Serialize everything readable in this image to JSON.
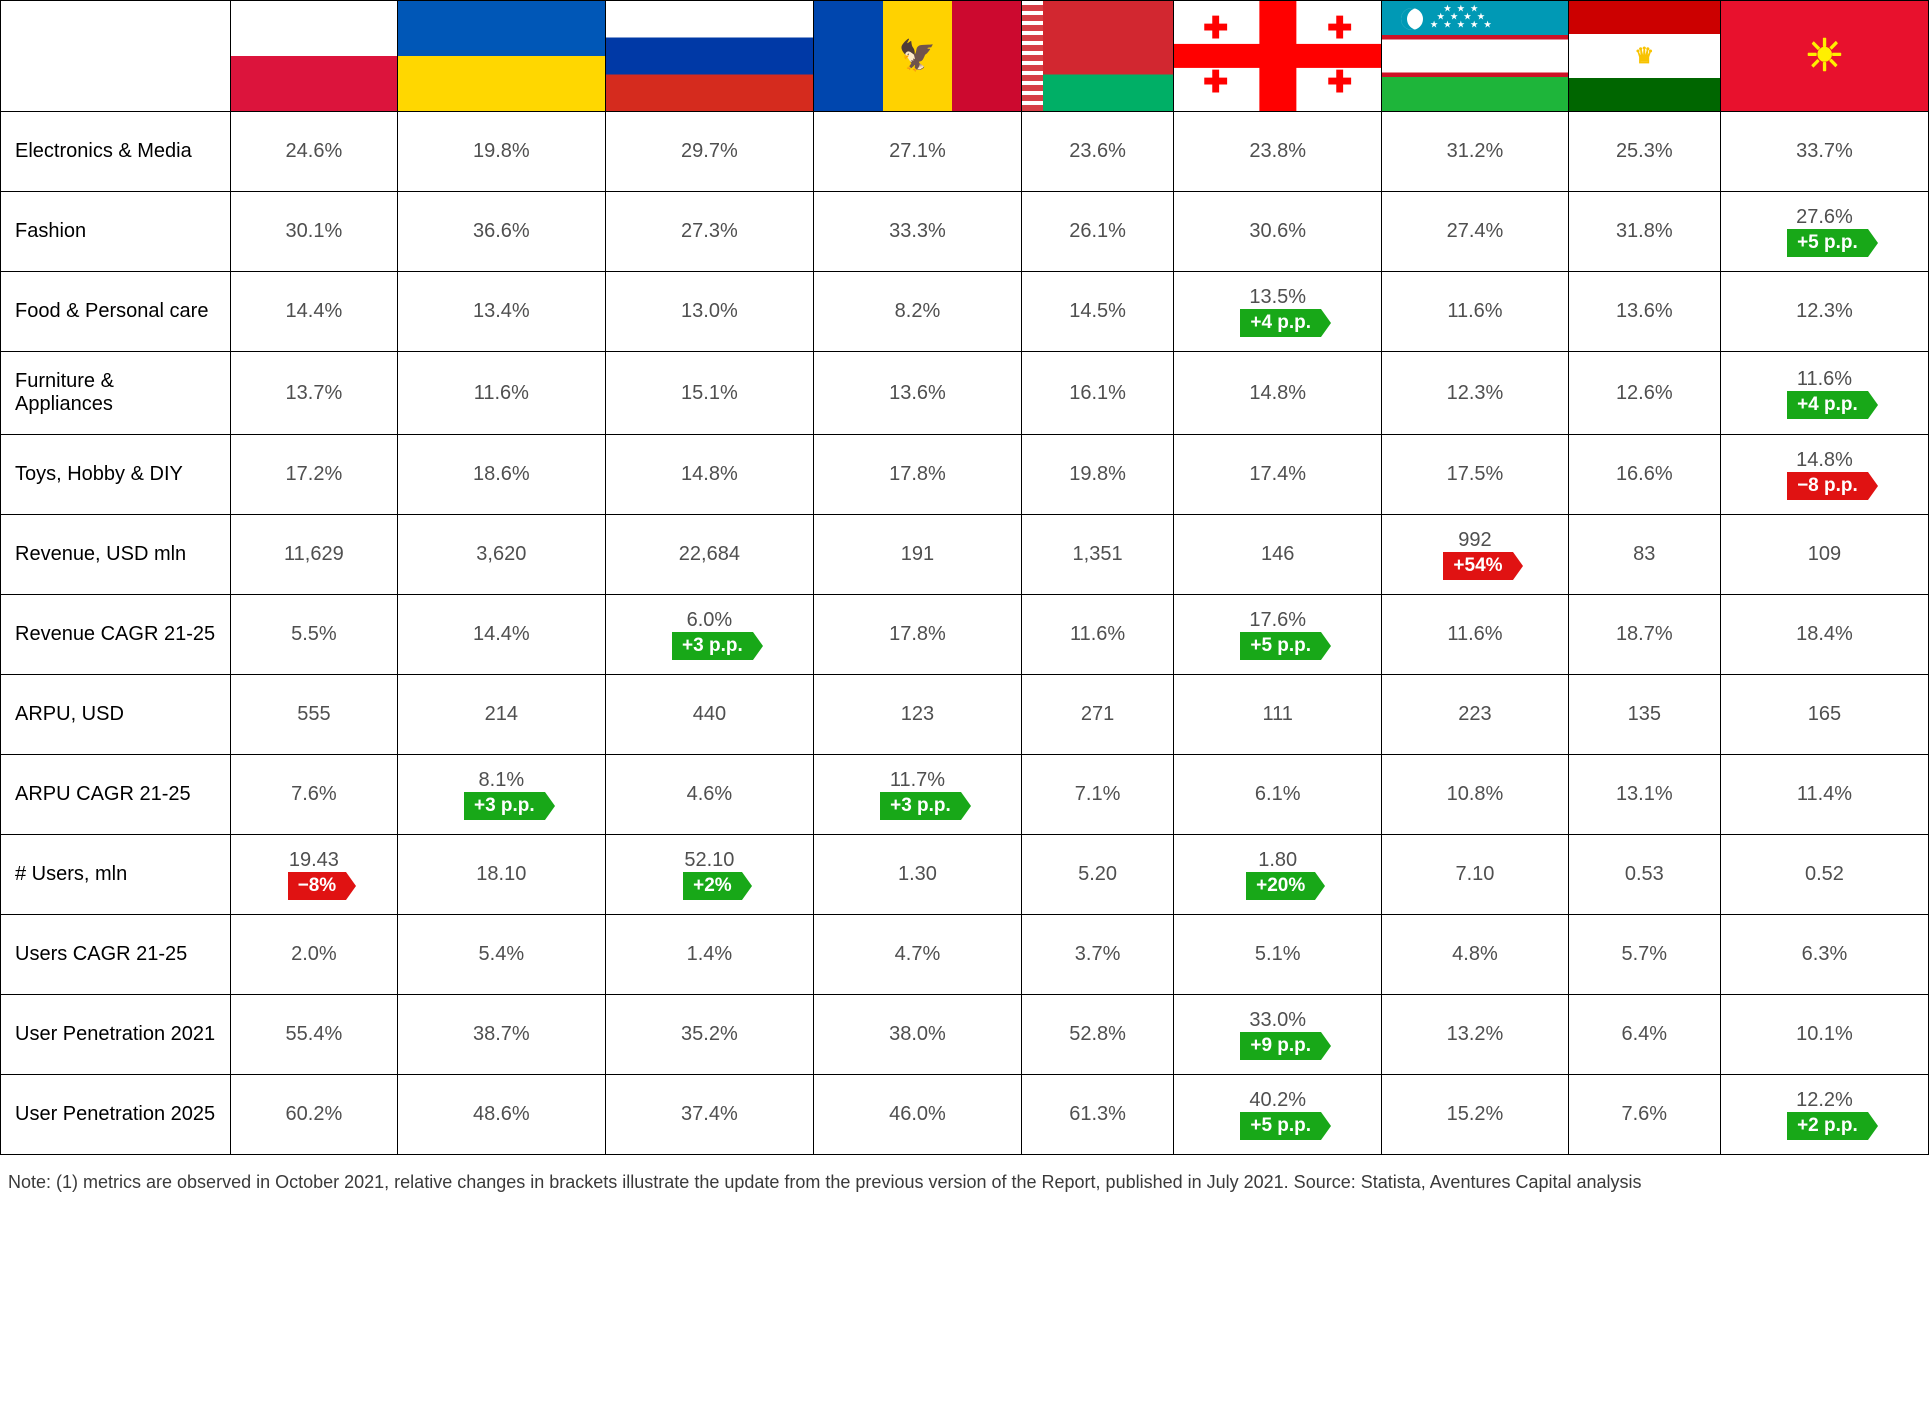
{
  "countries": [
    "Poland",
    "Ukraine",
    "Russia",
    "Moldova",
    "Belarus",
    "Georgia",
    "Uzbekistan",
    "Tajikistan",
    "Kyrgyzstan"
  ],
  "rows": [
    {
      "label": "Electronics & Media",
      "cells": [
        "24.6%",
        "19.8%",
        "29.7%",
        "27.1%",
        "23.6%",
        "23.8%",
        "31.2%",
        "25.3%",
        "33.7%"
      ]
    },
    {
      "label": "Fashion",
      "cells": [
        "30.1%",
        "36.6%",
        "27.3%",
        "33.3%",
        "26.1%",
        "30.6%",
        "27.4%",
        "31.8%",
        {
          "value": "27.6%",
          "delta": "+5 p.p.",
          "dir": "pos"
        }
      ]
    },
    {
      "label": "Food & Personal care",
      "cells": [
        "14.4%",
        "13.4%",
        "13.0%",
        "8.2%",
        "14.5%",
        {
          "value": "13.5%",
          "delta": "+4 p.p.",
          "dir": "pos"
        },
        "11.6%",
        "13.6%",
        "12.3%"
      ]
    },
    {
      "label": "Furniture & Appliances",
      "cells": [
        "13.7%",
        "11.6%",
        "15.1%",
        "13.6%",
        "16.1%",
        "14.8%",
        "12.3%",
        "12.6%",
        {
          "value": "11.6%",
          "delta": "+4 p.p.",
          "dir": "pos"
        }
      ]
    },
    {
      "label": "Toys, Hobby & DIY",
      "cells": [
        "17.2%",
        "18.6%",
        "14.8%",
        "17.8%",
        "19.8%",
        "17.4%",
        "17.5%",
        "16.6%",
        {
          "value": "14.8%",
          "delta": "−8 p.p.",
          "dir": "neg"
        }
      ]
    },
    {
      "label": "Revenue, USD mln",
      "cells": [
        "11,629",
        "3,620",
        "22,684",
        "191",
        "1,351",
        "146",
        {
          "value": "992",
          "delta": "+54%",
          "dir": "neg"
        },
        "83",
        "109"
      ]
    },
    {
      "label": "Revenue CAGR 21-25",
      "cells": [
        "5.5%",
        "14.4%",
        {
          "value": "6.0%",
          "delta": "+3 p.p.",
          "dir": "pos"
        },
        "17.8%",
        "11.6%",
        {
          "value": "17.6%",
          "delta": "+5 p.p.",
          "dir": "pos"
        },
        "11.6%",
        "18.7%",
        "18.4%"
      ]
    },
    {
      "label": "ARPU, USD",
      "cells": [
        "555",
        "214",
        "440",
        "123",
        "271",
        "111",
        "223",
        "135",
        "165"
      ]
    },
    {
      "label": "ARPU CAGR 21-25",
      "cells": [
        "7.6%",
        {
          "value": "8.1%",
          "delta": "+3 p.p.",
          "dir": "pos"
        },
        "4.6%",
        {
          "value": "11.7%",
          "delta": "+3 p.p.",
          "dir": "pos"
        },
        "7.1%",
        "6.1%",
        "10.8%",
        "13.1%",
        "11.4%"
      ]
    },
    {
      "label": "# Users, mln",
      "cells": [
        {
          "value": "19.43",
          "delta": "−8%",
          "dir": "neg"
        },
        "18.10",
        {
          "value": "52.10",
          "delta": "+2%",
          "dir": "pos"
        },
        "1.30",
        "5.20",
        {
          "value": "1.80",
          "delta": "+20%",
          "dir": "pos"
        },
        "7.10",
        "0.53",
        "0.52"
      ]
    },
    {
      "label": "Users CAGR 21-25",
      "cells": [
        "2.0%",
        "5.4%",
        "1.4%",
        "4.7%",
        "3.7%",
        "5.1%",
        "4.8%",
        "5.7%",
        "6.3%"
      ]
    },
    {
      "label": "User Penetration 2021",
      "cells": [
        "55.4%",
        "38.7%",
        "35.2%",
        "38.0%",
        "52.8%",
        {
          "value": "33.0%",
          "delta": "+9 p.p.",
          "dir": "pos"
        },
        "13.2%",
        "6.4%",
        "10.1%"
      ]
    },
    {
      "label": "User Penetration 2025",
      "cells": [
        "60.2%",
        "48.6%",
        "37.4%",
        "46.0%",
        "61.3%",
        {
          "value": "40.2%",
          "delta": "+5 p.p.",
          "dir": "pos"
        },
        "15.2%",
        "7.6%",
        {
          "value": "12.2%",
          "delta": "+2 p.p.",
          "dir": "pos"
        }
      ]
    }
  ],
  "colors": {
    "pos": "#18a818",
    "neg": "#e01212",
    "grid": "#000000",
    "text": "#4f4f4f"
  },
  "footnote": "Note: (1) metrics are observed in October 2021, relative changes in brackets illustrate the update from the previous version of the Report, published in July 2021.\nSource: Statista, Aventures Capital analysis"
}
